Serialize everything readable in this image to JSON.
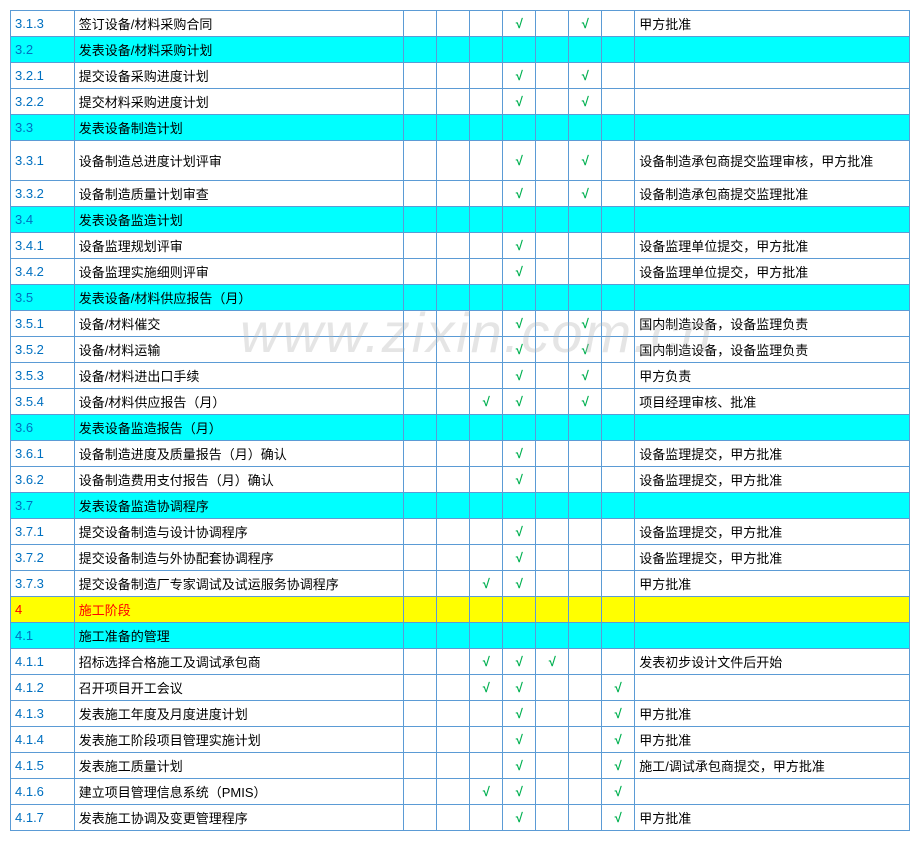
{
  "watermark": "www.zixin.com.cn",
  "colors": {
    "border": "#5b9bd5",
    "check": "#00b050",
    "blue": "#0070c0",
    "red": "#ff0000",
    "cyan": "#00ffff",
    "yellow": "#ffff00"
  },
  "rows": [
    {
      "id": "3.1.3",
      "desc": "签订设备/材料采购合同",
      "c": [
        0,
        0,
        0,
        0,
        1,
        0,
        1,
        0
      ],
      "rem": "甲方批准",
      "style": ""
    },
    {
      "id": "3.2",
      "desc": "发表设备/材料采购计划",
      "c": [
        0,
        0,
        0,
        0,
        0,
        0,
        0,
        0
      ],
      "rem": "",
      "style": "cyan"
    },
    {
      "id": "3.2.1",
      "desc": "提交设备采购进度计划",
      "c": [
        0,
        0,
        0,
        0,
        1,
        0,
        1,
        0
      ],
      "rem": "",
      "style": ""
    },
    {
      "id": "3.2.2",
      "desc": "提交材料采购进度计划",
      "c": [
        0,
        0,
        0,
        0,
        1,
        0,
        1,
        0
      ],
      "rem": "",
      "style": ""
    },
    {
      "id": "3.3",
      "desc": "发表设备制造计划",
      "c": [
        0,
        0,
        0,
        0,
        0,
        0,
        0,
        0
      ],
      "rem": "",
      "style": "cyan"
    },
    {
      "id": "3.3.1",
      "desc": "设备制造总进度计划评审",
      "c": [
        0,
        0,
        0,
        0,
        1,
        0,
        1,
        0
      ],
      "rem": "设备制造承包商提交监理审核，甲方批准",
      "style": "tall"
    },
    {
      "id": "3.3.2",
      "desc": "设备制造质量计划审查",
      "c": [
        0,
        0,
        0,
        0,
        1,
        0,
        1,
        0
      ],
      "rem": "设备制造承包商提交监理批准",
      "style": ""
    },
    {
      "id": "3.4",
      "desc": "发表设备监造计划",
      "c": [
        0,
        0,
        0,
        0,
        0,
        0,
        0,
        0
      ],
      "rem": "",
      "style": "cyan"
    },
    {
      "id": "3.4.1",
      "desc": "设备监理规划评审",
      "c": [
        0,
        0,
        0,
        0,
        1,
        0,
        0,
        0
      ],
      "rem": "设备监理单位提交，甲方批准",
      "style": ""
    },
    {
      "id": "3.4.2",
      "desc": "设备监理实施细则评审",
      "c": [
        0,
        0,
        0,
        0,
        1,
        0,
        0,
        0
      ],
      "rem": "设备监理单位提交，甲方批准",
      "style": ""
    },
    {
      "id": "3.5",
      "desc": "发表设备/材料供应报告（月）",
      "c": [
        0,
        0,
        0,
        0,
        0,
        0,
        0,
        0
      ],
      "rem": "",
      "style": "cyan"
    },
    {
      "id": "3.5.1",
      "desc": "设备/材料催交",
      "c": [
        0,
        0,
        0,
        0,
        1,
        0,
        1,
        0
      ],
      "rem": "国内制造设备，设备监理负责",
      "style": ""
    },
    {
      "id": "3.5.2",
      "desc": "设备/材料运输",
      "c": [
        0,
        0,
        0,
        0,
        1,
        0,
        1,
        0
      ],
      "rem": "国内制造设备，设备监理负责",
      "style": ""
    },
    {
      "id": "3.5.3",
      "desc": "设备/材料进出口手续",
      "c": [
        0,
        0,
        0,
        0,
        1,
        0,
        1,
        0
      ],
      "rem": "甲方负责",
      "style": ""
    },
    {
      "id": "3.5.4",
      "desc": "设备/材料供应报告（月）",
      "c": [
        0,
        0,
        0,
        1,
        1,
        0,
        1,
        0
      ],
      "rem": "项目经理审核、批准",
      "style": ""
    },
    {
      "id": "3.6",
      "desc": "发表设备监造报告（月）",
      "c": [
        0,
        0,
        0,
        0,
        0,
        0,
        0,
        0
      ],
      "rem": "",
      "style": "cyan"
    },
    {
      "id": "3.6.1",
      "desc": "设备制造进度及质量报告（月）确认",
      "c": [
        0,
        0,
        0,
        0,
        1,
        0,
        0,
        0
      ],
      "rem": "设备监理提交，甲方批准",
      "style": ""
    },
    {
      "id": "3.6.2",
      "desc": "设备制造费用支付报告（月）确认",
      "c": [
        0,
        0,
        0,
        0,
        1,
        0,
        0,
        0
      ],
      "rem": "设备监理提交，甲方批准",
      "style": ""
    },
    {
      "id": "3.7",
      "desc": "发表设备监造协调程序",
      "c": [
        0,
        0,
        0,
        0,
        0,
        0,
        0,
        0
      ],
      "rem": "",
      "style": "cyan"
    },
    {
      "id": "3.7.1",
      "desc": "提交设备制造与设计协调程序",
      "c": [
        0,
        0,
        0,
        0,
        1,
        0,
        0,
        0
      ],
      "rem": "设备监理提交，甲方批准",
      "style": ""
    },
    {
      "id": "3.7.2",
      "desc": "提交设备制造与外协配套协调程序",
      "c": [
        0,
        0,
        0,
        0,
        1,
        0,
        0,
        0
      ],
      "rem": "设备监理提交，甲方批准",
      "style": ""
    },
    {
      "id": "3.7.3",
      "desc": "提交设备制造厂专家调试及试运服务协调程序",
      "c": [
        0,
        0,
        0,
        1,
        1,
        0,
        0,
        0
      ],
      "rem": "甲方批准",
      "style": ""
    },
    {
      "id": "4",
      "desc": "施工阶段",
      "c": [
        0,
        0,
        0,
        0,
        0,
        0,
        0,
        0
      ],
      "rem": "",
      "style": "yellow"
    },
    {
      "id": "4.1",
      "desc": "施工准备的管理",
      "c": [
        0,
        0,
        0,
        0,
        0,
        0,
        0,
        0
      ],
      "rem": "",
      "style": "cyan"
    },
    {
      "id": "4.1.1",
      "desc": "招标选择合格施工及调试承包商",
      "c": [
        0,
        0,
        0,
        1,
        1,
        1,
        0,
        0
      ],
      "rem": "发表初步设计文件后开始",
      "style": ""
    },
    {
      "id": "4.1.2",
      "desc": "召开项目开工会议",
      "c": [
        0,
        0,
        0,
        1,
        1,
        0,
        0,
        1
      ],
      "rem": "",
      "style": ""
    },
    {
      "id": "4.1.3",
      "desc": "发表施工年度及月度进度计划",
      "c": [
        0,
        0,
        0,
        0,
        1,
        0,
        0,
        1
      ],
      "rem": "甲方批准",
      "style": ""
    },
    {
      "id": "4.1.4",
      "desc": "发表施工阶段项目管理实施计划",
      "c": [
        0,
        0,
        0,
        0,
        1,
        0,
        0,
        1
      ],
      "rem": "甲方批准",
      "style": ""
    },
    {
      "id": "4.1.5",
      "desc": "发表施工质量计划",
      "c": [
        0,
        0,
        0,
        0,
        1,
        0,
        0,
        1
      ],
      "rem": "施工/调试承包商提交，甲方批准",
      "style": ""
    },
    {
      "id": "4.1.6",
      "desc": "建立项目管理信息系统（PMIS）",
      "c": [
        0,
        0,
        0,
        1,
        1,
        0,
        0,
        1
      ],
      "rem": "",
      "style": ""
    },
    {
      "id": "4.1.7",
      "desc": "发表施工协调及变更管理程序",
      "c": [
        0,
        0,
        0,
        0,
        1,
        0,
        0,
        1
      ],
      "rem": "甲方批准",
      "style": ""
    }
  ]
}
